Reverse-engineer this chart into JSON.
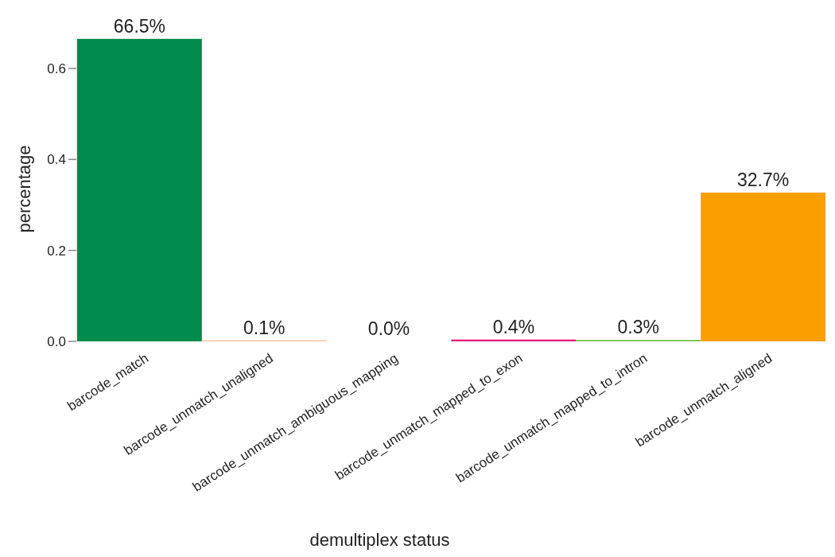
{
  "chart_data": {
    "type": "bar",
    "xlabel": "demultiplex status",
    "ylabel": "percentage",
    "categories": [
      "barcode_match",
      "barcode_unmatch_unaligned",
      "barcode_unmatch_ambiguous_mapping",
      "barcode_unmatch_mapped_to_exon",
      "barcode_unmatch_mapped_to_intron",
      "barcode_unmatch_aligned"
    ],
    "values": [
      0.665,
      0.001,
      0.0,
      0.004,
      0.003,
      0.327
    ],
    "colors": [
      "#008a4b",
      "#fdc4a0",
      "#9e9ac8",
      "#e8197a",
      "#6cbf3f",
      "#f9a000"
    ],
    "value_labels": [
      "66.5%",
      "0.1%",
      "0.0%",
      "0.4%",
      "0.3%",
      "32.7%"
    ],
    "ylim": [
      0,
      0.67
    ],
    "yticks": [
      {
        "value": 0,
        "label": "0.0"
      },
      {
        "value": 0.2,
        "label": "0.2"
      },
      {
        "value": 0.4,
        "label": "0.4"
      },
      {
        "value": 0.6,
        "label": "0.6"
      }
    ],
    "grid": false
  }
}
